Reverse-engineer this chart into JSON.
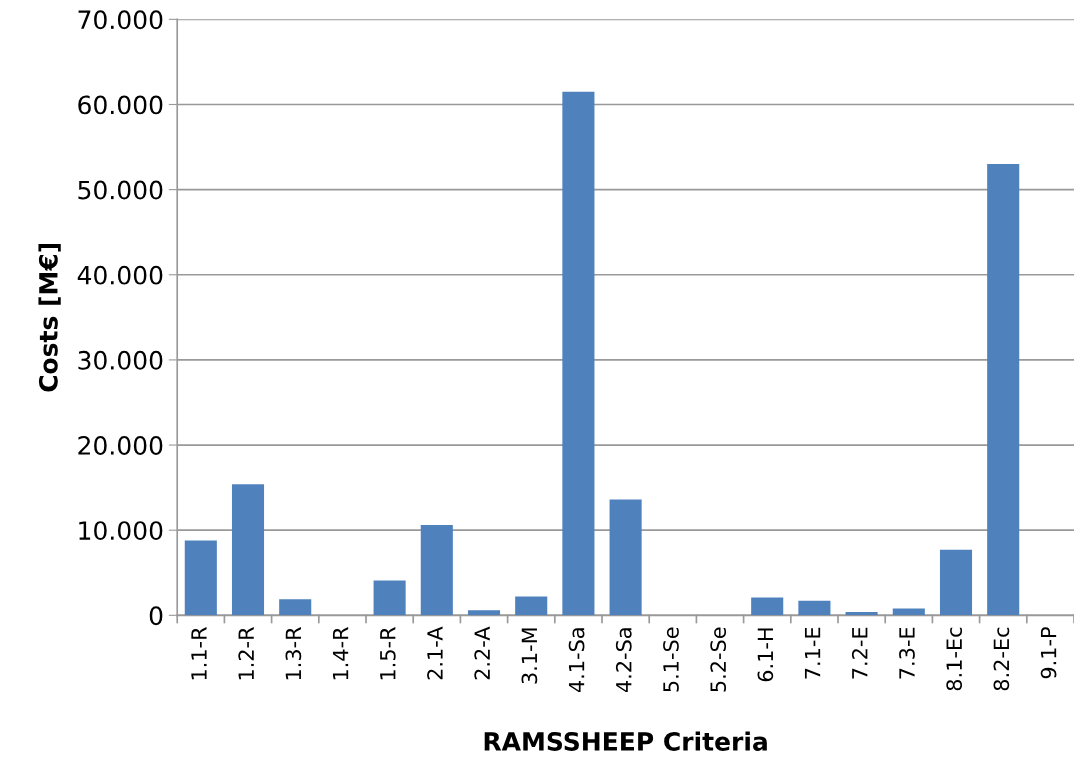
{
  "chart_data": {
    "type": "bar",
    "xlabel": "RAMSSHEEP Criteria",
    "ylabel": "Costs [M€]",
    "categories": [
      "1.1-R",
      "1.2-R",
      "1.3-R",
      "1.4-R",
      "1.5-R",
      "2.1-A",
      "2.2-A",
      "3.1-M",
      "4.1-Sa",
      "4.2-Sa",
      "5.1-Se",
      "5.2-Se",
      "6.1-H",
      "7.1-E",
      "7.2-E",
      "7.3-E",
      "8.1-Ec",
      "8.2-Ec",
      "9.1-P"
    ],
    "values": [
      8.8,
      15.4,
      1.9,
      0,
      4.1,
      10.6,
      0.6,
      2.2,
      61.5,
      13.6,
      0,
      0,
      2.1,
      1.7,
      0.4,
      0.8,
      7.7,
      53.0,
      0
    ],
    "color": "#4f81bd",
    "ylim": [
      0,
      70
    ],
    "yticks": [
      0,
      {
        "value": 10,
        "label": "10.000"
      },
      {
        "value": 20,
        "label": "20.000"
      },
      {
        "value": 30,
        "label": "30.000"
      },
      {
        "value": 40,
        "label": "40.000"
      },
      {
        "value": 50,
        "label": "50.000"
      },
      {
        "value": 60,
        "label": "60.000"
      },
      {
        "value": 70,
        "label": "70.000"
      }
    ],
    "grid": "y"
  }
}
